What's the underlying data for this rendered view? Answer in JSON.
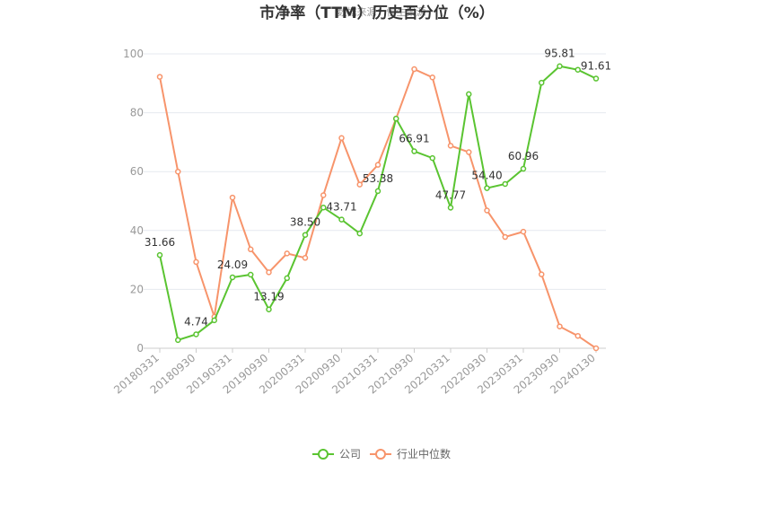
{
  "chart_data": {
    "type": "line",
    "title": "市净率（TTM）历史百分位（%）",
    "source": "数据来源：恒生聚源",
    "xlabel": "",
    "ylabel": "",
    "ylim": [
      0,
      100
    ],
    "yticks": [
      0,
      20,
      40,
      60,
      80,
      100
    ],
    "grid": true,
    "legend": "bottom",
    "x": [
      "20180331",
      "20180630",
      "20180930",
      "20181231",
      "20190331",
      "20190630",
      "20190930",
      "20191231",
      "20200331",
      "20200630",
      "20200930",
      "20201231",
      "20210331",
      "20210630",
      "20210930",
      "20211231",
      "20220331",
      "20220630",
      "20220930",
      "20221231",
      "20230331",
      "20230630",
      "20230930",
      "20231231",
      "20240130"
    ],
    "xtick_labels": [
      "20180331",
      "20180930",
      "20190331",
      "20190930",
      "20200331",
      "20200930",
      "20210331",
      "20210930",
      "20220331",
      "20220930",
      "20230331",
      "20230930",
      "20240130"
    ],
    "series": [
      {
        "name": "公司",
        "color": "#5ac431",
        "values": [
          31.66,
          2.8,
          4.74,
          9.5,
          24.09,
          25.0,
          13.19,
          23.8,
          38.5,
          47.8,
          43.71,
          39.0,
          53.38,
          78.0,
          66.91,
          64.6,
          47.77,
          86.3,
          54.4,
          55.8,
          60.96,
          90.2,
          95.81,
          94.6,
          91.61
        ],
        "labels": {
          "0": "31.66",
          "2": "4.74",
          "4": "24.09",
          "6": "13.19",
          "8": "38.50",
          "10": "43.71",
          "12": "53.38",
          "14": "66.91",
          "16": "47.77",
          "18": "54.40",
          "20": "60.96",
          "22": "95.81",
          "24": "91.61"
        }
      },
      {
        "name": "行业中位数",
        "color": "#f7946b",
        "values": [
          92.2,
          60.0,
          29.3,
          10.7,
          51.2,
          33.6,
          25.8,
          32.2,
          30.7,
          52.0,
          71.4,
          55.6,
          62.3,
          78.0,
          94.8,
          92.0,
          68.8,
          66.6,
          46.8,
          37.8,
          39.6,
          25.1,
          7.4,
          4.2,
          0.0
        ]
      }
    ]
  }
}
